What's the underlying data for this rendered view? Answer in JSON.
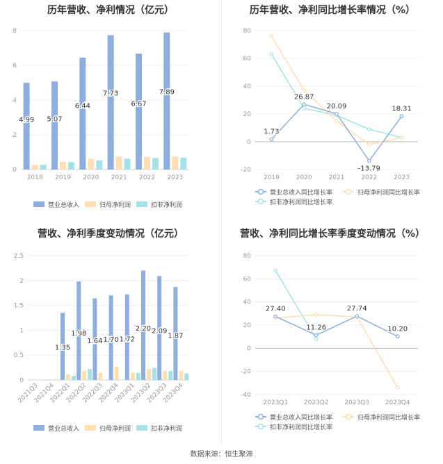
{
  "source": "数据来源：恒生聚源",
  "colors": {
    "blue": "#8eaedd",
    "beige": "#fddfb1",
    "teal": "#a5e2e7",
    "axis": "#999999",
    "grid": "#ececec"
  },
  "chart_data": [
    {
      "type": "bar",
      "title": "历年营收、净利情况（亿元）",
      "categories": [
        "2018",
        "2019",
        "2020",
        "2021",
        "2022",
        "2023"
      ],
      "ylim": [
        0,
        8
      ],
      "yticks": [
        "0",
        "2",
        "4",
        "6",
        "8"
      ],
      "series": [
        {
          "name": "营业总收入",
          "values": [
            4.99,
            5.07,
            6.44,
            7.73,
            6.67,
            7.89
          ],
          "labels": [
            "4.99",
            "5.07",
            "6.44",
            "7.73",
            "6.67",
            "7.89"
          ]
        },
        {
          "name": "归母净利润",
          "values": [
            0.26,
            0.44,
            0.62,
            0.74,
            0.72,
            0.74
          ]
        },
        {
          "name": "扣非净利润",
          "values": [
            0.27,
            0.42,
            0.52,
            0.62,
            0.66,
            0.68
          ]
        }
      ],
      "legend": "bottom"
    },
    {
      "type": "line",
      "title": "历年营收、净利同比增长率情况（%）",
      "categories": [
        "2019",
        "2020",
        "2021",
        "2022",
        "2023"
      ],
      "ylim": [
        -20,
        80
      ],
      "yticks": [
        "-20",
        "0",
        "20",
        "40",
        "60",
        "80"
      ],
      "series": [
        {
          "name": "营业总收入同比增长率",
          "values": [
            1.73,
            26.87,
            20.09,
            -13.79,
            18.31
          ],
          "labels": [
            "1.73",
            "26.87",
            "20.09",
            "-13.79",
            "18.31"
          ]
        },
        {
          "name": "归母净利润同比增长率",
          "values": [
            76,
            37,
            15,
            -2,
            3
          ]
        },
        {
          "name": "扣非净利润同比增长率",
          "values": [
            63,
            24,
            19,
            9,
            3
          ]
        }
      ],
      "legend": "bottom"
    },
    {
      "type": "bar",
      "title": "营收、净利季度变动情况（亿元）",
      "categories": [
        "2021Q3",
        "2021Q4",
        "2022Q1",
        "2022Q2",
        "2022Q3",
        "2022Q4",
        "2023Q1",
        "2023Q2",
        "2023Q3",
        "2023Q4"
      ],
      "ylim": [
        0,
        2.5
      ],
      "yticks": [
        "0",
        "0.5",
        "1",
        "1.5",
        "2",
        "2.5"
      ],
      "series": [
        {
          "name": "营业总收入",
          "values": [
            null,
            null,
            1.35,
            1.98,
            1.64,
            1.7,
            1.72,
            2.2,
            2.09,
            1.87
          ],
          "labels": [
            "",
            "",
            "1.35",
            "1.98",
            "1.64",
            "1.70",
            "1.72",
            "2.20",
            "2.09",
            "1.87"
          ]
        },
        {
          "name": "归母净利润",
          "values": [
            null,
            null,
            0.11,
            0.18,
            0.14,
            0.27,
            0.14,
            0.22,
            0.18,
            0.18
          ]
        },
        {
          "name": "扣非净利润",
          "values": [
            null,
            null,
            0.08,
            0.22,
            0.0,
            0.0,
            0.14,
            0.24,
            0.18,
            0.13
          ]
        }
      ],
      "legend": "bottom"
    },
    {
      "type": "line",
      "title": "营收、净利同比增长率季度变动情况（%）",
      "categories": [
        "2023Q1",
        "2023Q2",
        "2023Q3",
        "2023Q4"
      ],
      "ylim": [
        -40,
        80
      ],
      "yticks": [
        "-40",
        "-20",
        "0",
        "20",
        "40",
        "60",
        "80"
      ],
      "series": [
        {
          "name": "营业总收入同比增长率",
          "values": [
            27.4,
            11.26,
            27.74,
            10.2
          ],
          "labels": [
            "27.40",
            "11.26",
            "27.74",
            "10.20"
          ]
        },
        {
          "name": "归母净利润同比增长率",
          "values": [
            26,
            29,
            27,
            -34
          ]
        },
        {
          "name": "扣非净利润同比增长率",
          "values": [
            67,
            8,
            null,
            null
          ]
        }
      ],
      "legend": "bottom"
    }
  ]
}
